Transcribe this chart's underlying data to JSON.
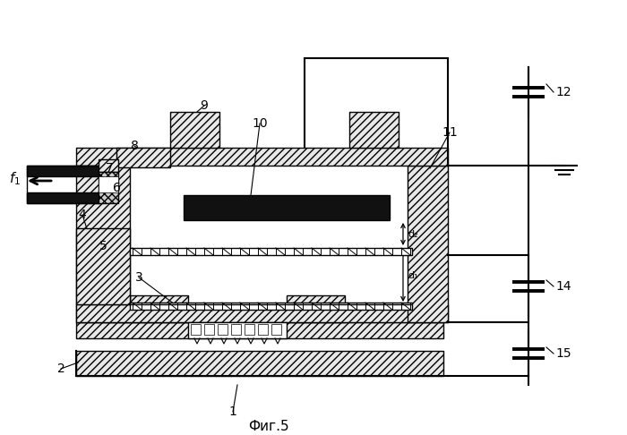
{
  "title": "Фиг.5",
  "bg_color": "#ffffff",
  "lc": "#000000",
  "fig_width": 7.0,
  "fig_height": 4.86,
  "dpi": 100
}
